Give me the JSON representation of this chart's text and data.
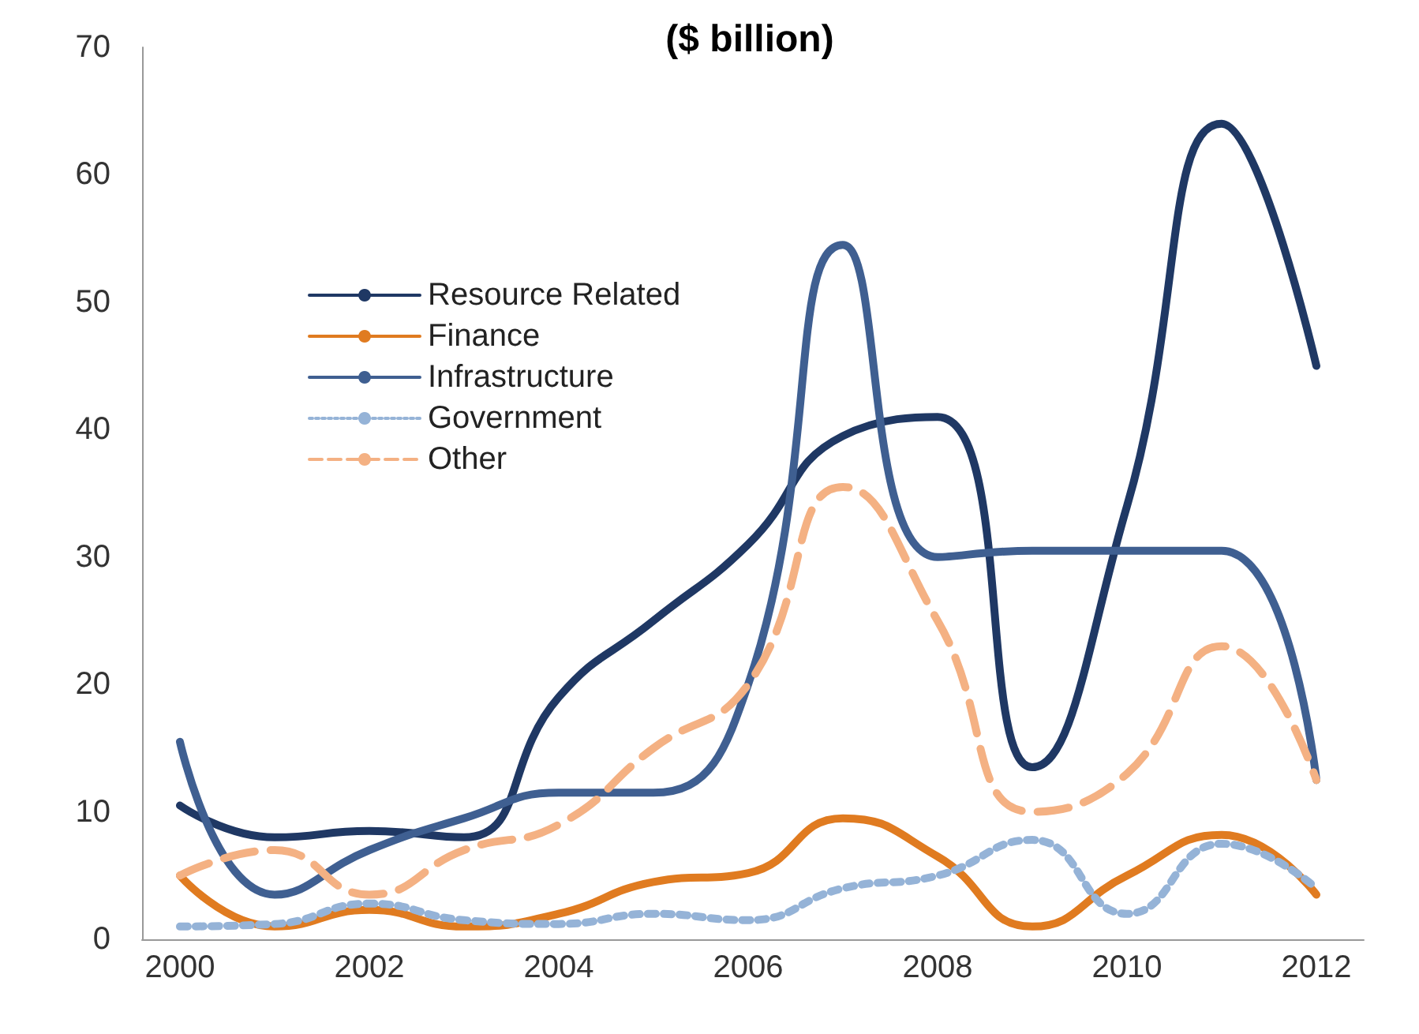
{
  "chart_data": {
    "type": "line",
    "subtitle": "($ billion)",
    "x": [
      2000,
      2001,
      2002,
      2003,
      2004,
      2005,
      2006,
      2007,
      2008,
      2009,
      2010,
      2011,
      2012
    ],
    "series": [
      {
        "name": "Resource Related",
        "color": "#1f3864",
        "line_style": "solid",
        "values": [
          10.5,
          8,
          8.5,
          8,
          19,
          25,
          31,
          39.5,
          41,
          13.5,
          34,
          64,
          45
        ]
      },
      {
        "name": "Finance",
        "color": "#e07b20",
        "line_style": "solid",
        "values": [
          5,
          1,
          2.3,
          1,
          2,
          4.5,
          5.2,
          9.5,
          6.5,
          1,
          5,
          8.2,
          3.5
        ]
      },
      {
        "name": "Infrastructure",
        "color": "#3f5f91",
        "line_style": "solid",
        "values": [
          15.5,
          3.5,
          7,
          9.5,
          11.5,
          11.5,
          20,
          54.5,
          30,
          30.5,
          30.5,
          30.5,
          12.5
        ]
      },
      {
        "name": "Government",
        "color": "#95b3d7",
        "line_style": "dotted",
        "values": [
          1,
          1.2,
          2.8,
          1.5,
          1.2,
          2,
          1.5,
          4,
          5,
          7.8,
          2,
          7.5,
          4
        ]
      },
      {
        "name": "Other",
        "color": "#f4b183",
        "line_style": "dashed",
        "values": [
          5,
          7,
          3.5,
          7,
          9,
          15,
          20,
          35.5,
          25,
          10,
          13,
          23,
          12.5
        ]
      }
    ],
    "xlim": [
      1999.6,
      2012.5
    ],
    "xticks": [
      2000,
      2002,
      2004,
      2006,
      2008,
      2010,
      2012
    ],
    "ylim": [
      0,
      70
    ],
    "yticks": [
      0,
      10,
      20,
      30,
      40,
      50,
      60,
      70
    ],
    "grid": false,
    "legend": "top left",
    "marker": "none"
  }
}
